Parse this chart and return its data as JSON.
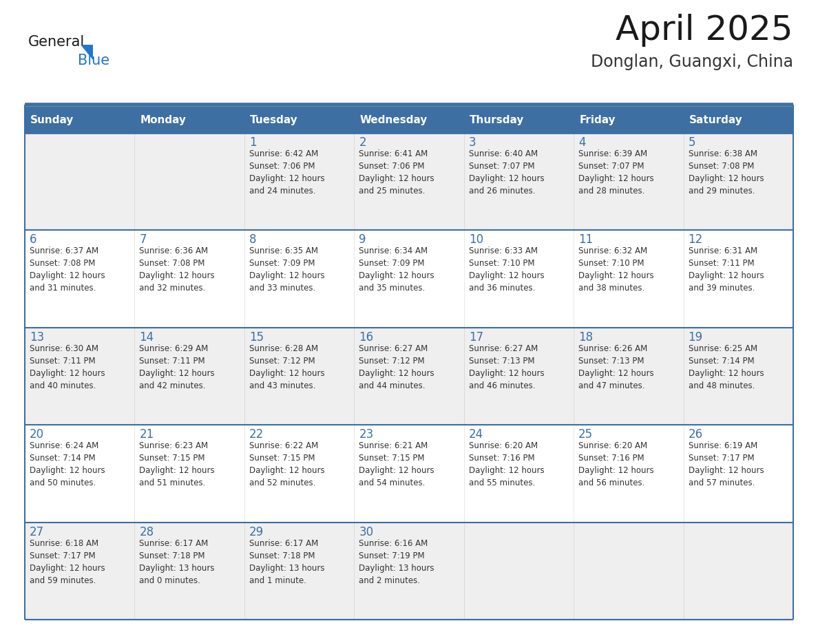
{
  "title": "April 2025",
  "subtitle": "Donglan, Guangxi, China",
  "header_bg_color": "#3D6FA3",
  "header_text_color": "#FFFFFF",
  "cell_bg_even": "#EFEFEF",
  "cell_bg_odd": "#FFFFFF",
  "text_color": "#333333",
  "day_number_color": "#3D6FA3",
  "border_color": "#3D6FA3",
  "separator_color": "#3D6FA3",
  "days_of_week": [
    "Sunday",
    "Monday",
    "Tuesday",
    "Wednesday",
    "Thursday",
    "Friday",
    "Saturday"
  ],
  "weeks": [
    [
      {
        "day": "",
        "info": ""
      },
      {
        "day": "",
        "info": ""
      },
      {
        "day": "1",
        "info": "Sunrise: 6:42 AM\nSunset: 7:06 PM\nDaylight: 12 hours\nand 24 minutes."
      },
      {
        "day": "2",
        "info": "Sunrise: 6:41 AM\nSunset: 7:06 PM\nDaylight: 12 hours\nand 25 minutes."
      },
      {
        "day": "3",
        "info": "Sunrise: 6:40 AM\nSunset: 7:07 PM\nDaylight: 12 hours\nand 26 minutes."
      },
      {
        "day": "4",
        "info": "Sunrise: 6:39 AM\nSunset: 7:07 PM\nDaylight: 12 hours\nand 28 minutes."
      },
      {
        "day": "5",
        "info": "Sunrise: 6:38 AM\nSunset: 7:08 PM\nDaylight: 12 hours\nand 29 minutes."
      }
    ],
    [
      {
        "day": "6",
        "info": "Sunrise: 6:37 AM\nSunset: 7:08 PM\nDaylight: 12 hours\nand 31 minutes."
      },
      {
        "day": "7",
        "info": "Sunrise: 6:36 AM\nSunset: 7:08 PM\nDaylight: 12 hours\nand 32 minutes."
      },
      {
        "day": "8",
        "info": "Sunrise: 6:35 AM\nSunset: 7:09 PM\nDaylight: 12 hours\nand 33 minutes."
      },
      {
        "day": "9",
        "info": "Sunrise: 6:34 AM\nSunset: 7:09 PM\nDaylight: 12 hours\nand 35 minutes."
      },
      {
        "day": "10",
        "info": "Sunrise: 6:33 AM\nSunset: 7:10 PM\nDaylight: 12 hours\nand 36 minutes."
      },
      {
        "day": "11",
        "info": "Sunrise: 6:32 AM\nSunset: 7:10 PM\nDaylight: 12 hours\nand 38 minutes."
      },
      {
        "day": "12",
        "info": "Sunrise: 6:31 AM\nSunset: 7:11 PM\nDaylight: 12 hours\nand 39 minutes."
      }
    ],
    [
      {
        "day": "13",
        "info": "Sunrise: 6:30 AM\nSunset: 7:11 PM\nDaylight: 12 hours\nand 40 minutes."
      },
      {
        "day": "14",
        "info": "Sunrise: 6:29 AM\nSunset: 7:11 PM\nDaylight: 12 hours\nand 42 minutes."
      },
      {
        "day": "15",
        "info": "Sunrise: 6:28 AM\nSunset: 7:12 PM\nDaylight: 12 hours\nand 43 minutes."
      },
      {
        "day": "16",
        "info": "Sunrise: 6:27 AM\nSunset: 7:12 PM\nDaylight: 12 hours\nand 44 minutes."
      },
      {
        "day": "17",
        "info": "Sunrise: 6:27 AM\nSunset: 7:13 PM\nDaylight: 12 hours\nand 46 minutes."
      },
      {
        "day": "18",
        "info": "Sunrise: 6:26 AM\nSunset: 7:13 PM\nDaylight: 12 hours\nand 47 minutes."
      },
      {
        "day": "19",
        "info": "Sunrise: 6:25 AM\nSunset: 7:14 PM\nDaylight: 12 hours\nand 48 minutes."
      }
    ],
    [
      {
        "day": "20",
        "info": "Sunrise: 6:24 AM\nSunset: 7:14 PM\nDaylight: 12 hours\nand 50 minutes."
      },
      {
        "day": "21",
        "info": "Sunrise: 6:23 AM\nSunset: 7:15 PM\nDaylight: 12 hours\nand 51 minutes."
      },
      {
        "day": "22",
        "info": "Sunrise: 6:22 AM\nSunset: 7:15 PM\nDaylight: 12 hours\nand 52 minutes."
      },
      {
        "day": "23",
        "info": "Sunrise: 6:21 AM\nSunset: 7:15 PM\nDaylight: 12 hours\nand 54 minutes."
      },
      {
        "day": "24",
        "info": "Sunrise: 6:20 AM\nSunset: 7:16 PM\nDaylight: 12 hours\nand 55 minutes."
      },
      {
        "day": "25",
        "info": "Sunrise: 6:20 AM\nSunset: 7:16 PM\nDaylight: 12 hours\nand 56 minutes."
      },
      {
        "day": "26",
        "info": "Sunrise: 6:19 AM\nSunset: 7:17 PM\nDaylight: 12 hours\nand 57 minutes."
      }
    ],
    [
      {
        "day": "27",
        "info": "Sunrise: 6:18 AM\nSunset: 7:17 PM\nDaylight: 12 hours\nand 59 minutes."
      },
      {
        "day": "28",
        "info": "Sunrise: 6:17 AM\nSunset: 7:18 PM\nDaylight: 13 hours\nand 0 minutes."
      },
      {
        "day": "29",
        "info": "Sunrise: 6:17 AM\nSunset: 7:18 PM\nDaylight: 13 hours\nand 1 minute."
      },
      {
        "day": "30",
        "info": "Sunrise: 6:16 AM\nSunset: 7:19 PM\nDaylight: 13 hours\nand 2 minutes."
      },
      {
        "day": "",
        "info": ""
      },
      {
        "day": "",
        "info": ""
      },
      {
        "day": "",
        "info": ""
      }
    ]
  ],
  "logo_text_general": "General",
  "logo_text_blue": "Blue",
  "logo_color_black": "#1a1a1a",
  "logo_color_blue": "#2277CC",
  "logo_triangle_color": "#2277CC",
  "title_fontsize": 36,
  "subtitle_fontsize": 17,
  "header_fontsize": 11,
  "day_number_fontsize": 12,
  "info_fontsize": 8.5
}
